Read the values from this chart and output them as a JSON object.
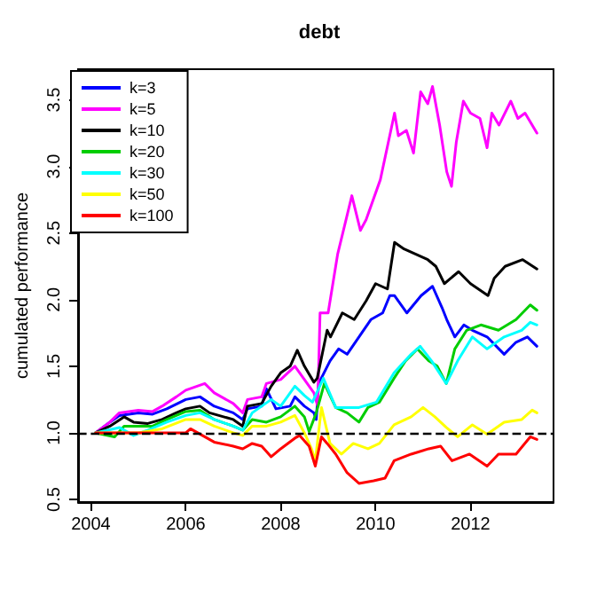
{
  "chart_data": {
    "type": "line",
    "title": "debt",
    "ylabel": "cumulated performance",
    "xlim": [
      2003.73,
      2013.75
    ],
    "xticks": [
      2004,
      2006,
      2008,
      2010,
      2012
    ],
    "ylim": [
      0.48,
      3.73
    ],
    "yticks": [
      {
        "value": 0.5,
        "label": "0.5"
      },
      {
        "value": 1,
        "label": "1.0"
      },
      {
        "value": 1.5,
        "label": "1.5"
      },
      {
        "value": 2,
        "label": "2.0"
      },
      {
        "value": 2.5,
        "label": "2.5"
      },
      {
        "value": 3,
        "label": "3.0"
      },
      {
        "value": 3.5,
        "label": "3.5"
      }
    ],
    "grid": false,
    "legend": "top left",
    "marker": "none",
    "line_style": "solid",
    "ref_lines": [
      {
        "axis": "y",
        "value": 1,
        "color": "#000000",
        "line_style": "dashed"
      }
    ],
    "series": [
      {
        "name": "k=3",
        "color": "#0000ff",
        "x": [
          2004.1,
          2004.4,
          2004.6,
          2005.0,
          2005.3,
          2005.6,
          2006.0,
          2006.3,
          2006.6,
          2007.0,
          2007.2,
          2007.3,
          2007.6,
          2007.7,
          2007.9,
          2008.2,
          2008.3,
          2008.5,
          2008.7,
          2008.75,
          2008.8,
          2009.04,
          2009.22,
          2009.4,
          2009.65,
          2009.9,
          2010.15,
          2010.3,
          2010.4,
          2010.66,
          2010.96,
          2011.2,
          2011.4,
          2011.5,
          2011.67,
          2011.86,
          2012.04,
          2012.35,
          2012.71,
          2012.96,
          2013.2,
          2013.4
        ],
        "values": [
          1.0,
          1.08,
          1.13,
          1.15,
          1.14,
          1.18,
          1.25,
          1.27,
          1.2,
          1.15,
          1.1,
          1.18,
          1.2,
          1.33,
          1.18,
          1.2,
          1.27,
          1.2,
          1.15,
          1.1,
          1.37,
          1.54,
          1.63,
          1.59,
          1.72,
          1.85,
          1.9,
          2.03,
          2.03,
          1.9,
          2.03,
          2.1,
          1.94,
          1.85,
          1.72,
          1.81,
          1.77,
          1.72,
          1.59,
          1.68,
          1.72,
          1.65
        ]
      },
      {
        "name": "k=5",
        "color": "#ff00ff",
        "x": [
          2004.1,
          2004.4,
          2004.6,
          2005.0,
          2005.3,
          2005.5,
          2005.8,
          2006.0,
          2006.4,
          2006.6,
          2007.0,
          2007.2,
          2007.3,
          2007.6,
          2007.7,
          2008.0,
          2008.3,
          2008.5,
          2008.7,
          2008.78,
          2008.83,
          2009.0,
          2009.2,
          2009.5,
          2009.68,
          2009.8,
          2010.1,
          2010.4,
          2010.48,
          2010.65,
          2010.8,
          2010.95,
          2011.1,
          2011.2,
          2011.35,
          2011.5,
          2011.6,
          2011.7,
          2011.85,
          2012.0,
          2012.2,
          2012.35,
          2012.45,
          2012.6,
          2012.85,
          2013.0,
          2013.15,
          2013.4
        ],
        "values": [
          1.0,
          1.08,
          1.15,
          1.17,
          1.16,
          1.2,
          1.27,
          1.32,
          1.37,
          1.3,
          1.22,
          1.15,
          1.25,
          1.27,
          1.37,
          1.4,
          1.5,
          1.4,
          1.3,
          1.2,
          1.9,
          1.9,
          2.34,
          2.78,
          2.52,
          2.6,
          2.9,
          3.4,
          3.23,
          3.27,
          3.1,
          3.56,
          3.47,
          3.6,
          3.31,
          2.96,
          2.85,
          3.18,
          3.49,
          3.4,
          3.36,
          3.14,
          3.4,
          3.31,
          3.49,
          3.36,
          3.4,
          3.25
        ]
      },
      {
        "name": "k=10",
        "color": "#000000",
        "x": [
          2004.1,
          2004.4,
          2004.7,
          2004.9,
          2005.2,
          2005.5,
          2005.8,
          2006.0,
          2006.3,
          2006.5,
          2007.0,
          2007.2,
          2007.3,
          2007.6,
          2007.8,
          2008.0,
          2008.2,
          2008.35,
          2008.5,
          2008.7,
          2008.77,
          2008.98,
          2009.05,
          2009.3,
          2009.55,
          2009.8,
          2010.0,
          2010.25,
          2010.4,
          2010.6,
          2010.85,
          2011.1,
          2011.27,
          2011.45,
          2011.75,
          2012.0,
          2012.37,
          2012.5,
          2012.73,
          2013.1,
          2013.4
        ],
        "values": [
          1.0,
          1.05,
          1.12,
          1.08,
          1.07,
          1.1,
          1.15,
          1.18,
          1.2,
          1.15,
          1.1,
          1.05,
          1.2,
          1.22,
          1.35,
          1.45,
          1.5,
          1.62,
          1.5,
          1.38,
          1.41,
          1.77,
          1.72,
          1.9,
          1.85,
          1.99,
          2.12,
          2.08,
          2.43,
          2.38,
          2.34,
          2.3,
          2.25,
          2.12,
          2.21,
          2.12,
          2.03,
          2.16,
          2.25,
          2.3,
          2.23
        ]
      },
      {
        "name": "k=20",
        "color": "#00cd00",
        "x": [
          2004.1,
          2004.5,
          2004.7,
          2005.0,
          2005.3,
          2005.6,
          2006.0,
          2006.3,
          2006.6,
          2007.0,
          2007.2,
          2007.4,
          2007.7,
          2008.0,
          2008.3,
          2008.5,
          2008.6,
          2008.75,
          2008.92,
          2009.16,
          2009.4,
          2009.65,
          2009.84,
          2010.08,
          2010.39,
          2010.63,
          2010.88,
          2011.12,
          2011.3,
          2011.49,
          2011.67,
          2011.92,
          2012.22,
          2012.59,
          2012.96,
          2013.26,
          2013.4
        ],
        "values": [
          1.0,
          0.97,
          1.05,
          1.05,
          1.05,
          1.1,
          1.16,
          1.17,
          1.1,
          1.05,
          1.02,
          1.1,
          1.08,
          1.12,
          1.2,
          1.12,
          1.01,
          1.15,
          1.37,
          1.19,
          1.15,
          1.08,
          1.19,
          1.23,
          1.41,
          1.54,
          1.63,
          1.54,
          1.5,
          1.37,
          1.63,
          1.77,
          1.81,
          1.77,
          1.85,
          1.96,
          1.92
        ]
      },
      {
        "name": "k=30",
        "color": "#00ffff",
        "x": [
          2004.1,
          2004.6,
          2004.9,
          2005.2,
          2005.6,
          2006.0,
          2006.3,
          2006.6,
          2007.0,
          2007.2,
          2007.4,
          2007.6,
          2007.8,
          2008.0,
          2008.3,
          2008.5,
          2008.67,
          2008.9,
          2009.16,
          2009.4,
          2009.65,
          2010.02,
          2010.39,
          2010.75,
          2010.94,
          2011.18,
          2011.49,
          2011.73,
          2012.04,
          2012.35,
          2012.71,
          2013.08,
          2013.26,
          2013.4
        ],
        "values": [
          1.0,
          1.04,
          0.98,
          1.02,
          1.08,
          1.13,
          1.15,
          1.1,
          1.05,
          1.02,
          1.15,
          1.2,
          1.25,
          1.2,
          1.35,
          1.28,
          1.23,
          1.41,
          1.19,
          1.19,
          1.19,
          1.23,
          1.45,
          1.59,
          1.65,
          1.54,
          1.37,
          1.54,
          1.72,
          1.63,
          1.72,
          1.77,
          1.83,
          1.81
        ]
      },
      {
        "name": "k=50",
        "color": "#ffff00",
        "x": [
          2004.1,
          2004.5,
          2005.0,
          2005.5,
          2006.0,
          2006.3,
          2006.6,
          2007.0,
          2007.2,
          2007.4,
          2007.7,
          2008.0,
          2008.3,
          2008.5,
          2008.65,
          2008.73,
          2008.86,
          2009.04,
          2009.28,
          2009.53,
          2009.84,
          2010.08,
          2010.39,
          2010.75,
          2011.0,
          2011.25,
          2011.49,
          2011.73,
          2012.04,
          2012.35,
          2012.71,
          2013.08,
          2013.3,
          2013.4
        ],
        "values": [
          1.0,
          1.0,
          1.0,
          1.03,
          1.1,
          1.1,
          1.05,
          1.0,
          0.98,
          1.05,
          1.05,
          1.08,
          1.13,
          1.0,
          0.88,
          0.79,
          1.19,
          0.92,
          0.84,
          0.92,
          0.88,
          0.92,
          1.06,
          1.12,
          1.19,
          1.12,
          1.04,
          0.97,
          1.06,
          0.99,
          1.08,
          1.1,
          1.17,
          1.15
        ]
      },
      {
        "name": "k=100",
        "color": "#ff0000",
        "x": [
          2004.1,
          2005.0,
          2005.5,
          2006.0,
          2006.1,
          2006.4,
          2006.6,
          2007.0,
          2007.2,
          2007.4,
          2007.6,
          2007.8,
          2008.0,
          2008.3,
          2008.4,
          2008.6,
          2008.73,
          2008.86,
          2008.98,
          2009.16,
          2009.4,
          2009.65,
          2009.96,
          2010.2,
          2010.39,
          2010.75,
          2011.12,
          2011.37,
          2011.61,
          2011.98,
          2012.35,
          2012.59,
          2012.96,
          2013.26,
          2013.4
        ],
        "values": [
          1.0,
          1.0,
          1.0,
          1.0,
          1.03,
          0.97,
          0.93,
          0.9,
          0.88,
          0.92,
          0.9,
          0.82,
          0.88,
          0.96,
          0.98,
          0.9,
          0.75,
          0.97,
          0.92,
          0.84,
          0.7,
          0.62,
          0.64,
          0.66,
          0.79,
          0.84,
          0.88,
          0.9,
          0.79,
          0.84,
          0.75,
          0.84,
          0.84,
          0.97,
          0.95
        ]
      }
    ]
  }
}
